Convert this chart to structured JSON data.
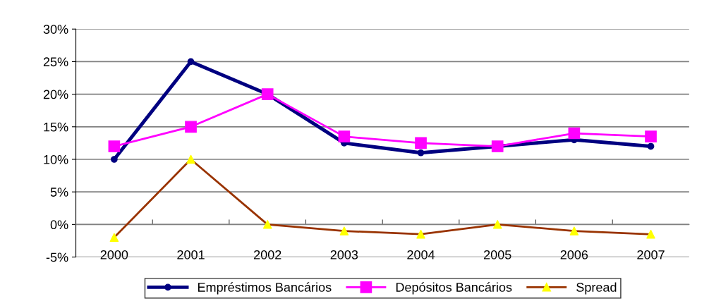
{
  "chart_data": {
    "type": "line",
    "categories": [
      "2000",
      "2001",
      "2002",
      "2003",
      "2004",
      "2005",
      "2006",
      "2007"
    ],
    "series": [
      {
        "name": "Empréstimos Bancários",
        "color": "#000080",
        "marker": "circle",
        "values": [
          10,
          25,
          20,
          12.5,
          11,
          12,
          13,
          12
        ]
      },
      {
        "name": "Depósitos Bancários",
        "color": "#ff00ff",
        "marker": "square",
        "values": [
          12,
          15,
          20,
          13.5,
          12.5,
          12,
          14,
          13.5
        ]
      },
      {
        "name": "Spread",
        "color": "#993300",
        "marker": "triangle",
        "colors": [
          "#ffff00",
          "#ffff00",
          "#ffff00",
          "#ffff00",
          "#ffff00",
          "#ffff00",
          "#ffff00",
          "#ffff00"
        ],
        "values": [
          -2,
          10,
          0,
          -1,
          -1.5,
          0,
          -1,
          -1.5
        ]
      }
    ],
    "ylim": [
      -5,
      30
    ],
    "yticks": [
      {
        "value": -5,
        "label": "-5%"
      },
      {
        "value": 0,
        "label": "0%"
      },
      {
        "value": 5,
        "label": "5%"
      },
      {
        "value": 10,
        "label": "10%"
      },
      {
        "value": 15,
        "label": "15%"
      },
      {
        "value": 20,
        "label": "20%"
      },
      {
        "value": 25,
        "label": "25%"
      },
      {
        "value": 30,
        "label": "30%"
      }
    ],
    "grid": "y",
    "legend": "bottom",
    "line_style": "solid"
  }
}
